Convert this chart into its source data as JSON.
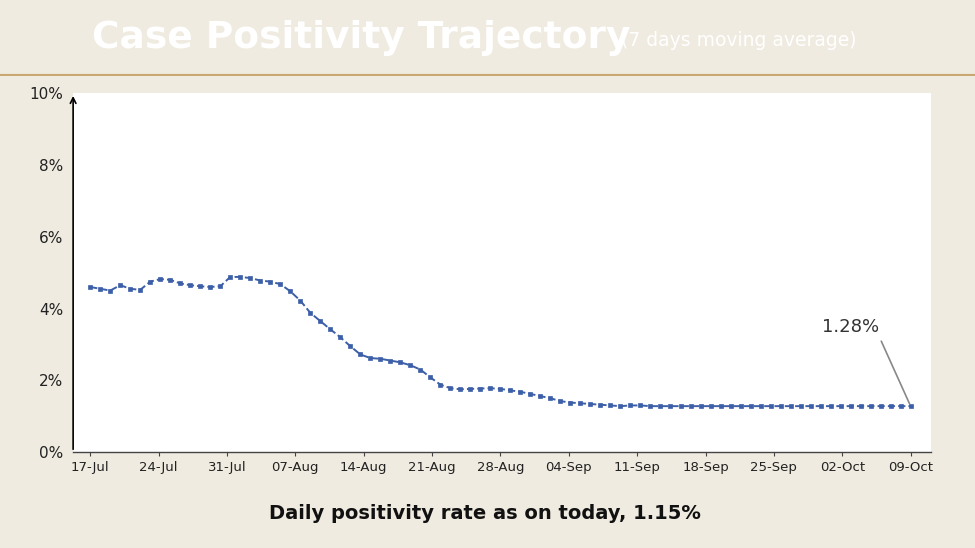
{
  "title_main": "Case Positivity Trajectory",
  "title_sub": " (7 days moving average)",
  "header_bg": "#0d2060",
  "header_text_color": "#ffffff",
  "chart_bg": "#f0ebe0",
  "line_color": "#3d5fa8",
  "x_labels": [
    "17-Jul",
    "24-Jul",
    "31-Jul",
    "07-Aug",
    "14-Aug",
    "21-Aug",
    "28-Aug",
    "04-Sep",
    "11-Sep",
    "18-Sep",
    "25-Sep",
    "02-Oct",
    "09-Oct"
  ],
  "y_values": [
    4.6,
    4.55,
    4.5,
    4.65,
    4.55,
    4.52,
    4.75,
    4.82,
    4.8,
    4.7,
    4.65,
    4.62,
    4.6,
    4.62,
    4.88,
    4.88,
    4.85,
    4.78,
    4.75,
    4.68,
    4.48,
    4.22,
    3.88,
    3.65,
    3.42,
    3.2,
    2.95,
    2.72,
    2.62,
    2.6,
    2.55,
    2.5,
    2.42,
    2.3,
    2.08,
    1.88,
    1.78,
    1.75,
    1.76,
    1.77,
    1.78,
    1.76,
    1.72,
    1.68,
    1.62,
    1.56,
    1.5,
    1.42,
    1.38,
    1.36,
    1.34,
    1.32,
    1.3,
    1.28,
    1.3,
    1.3,
    1.28,
    1.28,
    1.28,
    1.28,
    1.28,
    1.28,
    1.28,
    1.28,
    1.28,
    1.28,
    1.28,
    1.28,
    1.28,
    1.28,
    1.28,
    1.28,
    1.28,
    1.28,
    1.28,
    1.28,
    1.28,
    1.28,
    1.28,
    1.28,
    1.28,
    1.28,
    1.28
  ],
  "annotation_text": "1.28%",
  "footer_text": "Daily positivity rate as on today, 1.15%",
  "footer_bg": "#fce8a8",
  "footer_text_color": "#111111",
  "ylim": [
    0,
    10
  ],
  "yticks": [
    0,
    2,
    4,
    6,
    8,
    10
  ],
  "ytick_labels": [
    "0%",
    "2%",
    "4%",
    "6%",
    "8%",
    "10%"
  ]
}
